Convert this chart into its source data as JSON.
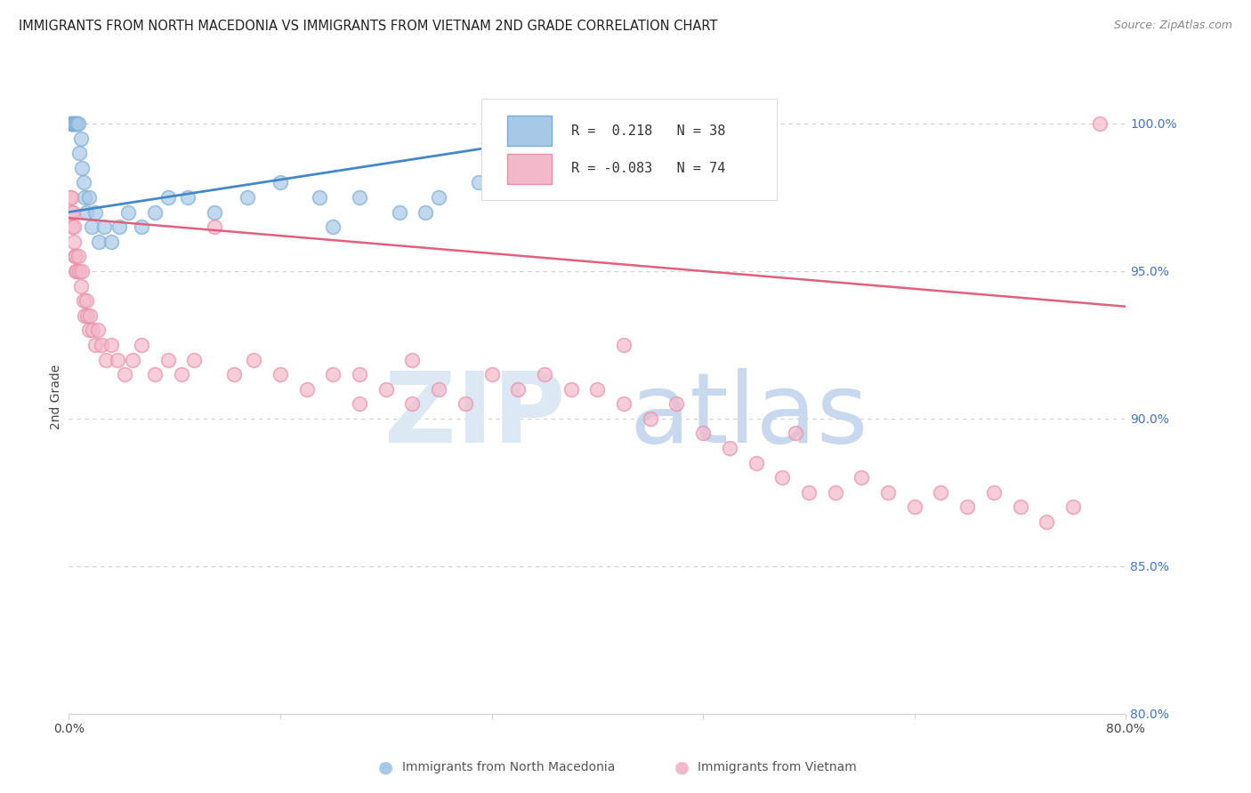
{
  "title": "IMMIGRANTS FROM NORTH MACEDONIA VS IMMIGRANTS FROM VIETNAM 2ND GRADE CORRELATION CHART",
  "source": "Source: ZipAtlas.com",
  "ylabel": "2nd Grade",
  "xlim": [
    0.0,
    80.0
  ],
  "ylim": [
    80.0,
    101.5
  ],
  "yticks": [
    80.0,
    85.0,
    90.0,
    95.0,
    100.0
  ],
  "ytick_labels": [
    "80.0%",
    "85.0%",
    "90.0%",
    "95.0%",
    "100.0%"
  ],
  "xtick_left_label": "0.0%",
  "xtick_right_label": "80.0%",
  "legend_r_blue": "0.218",
  "legend_n_blue": "38",
  "legend_r_pink": "-0.083",
  "legend_n_pink": "74",
  "blue_face_color": "#a8c8e8",
  "blue_edge_color": "#7aaed4",
  "pink_face_color": "#f4b8cb",
  "pink_edge_color": "#e890a8",
  "blue_line_color": "#4488cc",
  "pink_line_color": "#e06080",
  "grid_color": "#d0d0d0",
  "title_color": "#222222",
  "source_color": "#888888",
  "right_tick_color": "#4472c4",
  "watermark_zip_color": "#dde8f5",
  "watermark_atlas_color": "#c8d8ee",
  "legend_text_blue_r": "R =  0.218",
  "legend_text_blue_n": "N = 38",
  "legend_text_pink_r": "R = -0.083",
  "legend_text_pink_n": "N = 74",
  "bottom_legend_blue": "Immigrants from North Macedonia",
  "bottom_legend_pink": "Immigrants from Vietnam",
  "blue_x": [
    0.15,
    0.2,
    0.25,
    0.3,
    0.35,
    0.4,
    0.5,
    0.55,
    0.6,
    0.7,
    0.8,
    0.9,
    1.0,
    1.1,
    1.2,
    1.3,
    1.5,
    1.7,
    2.0,
    2.3,
    2.7,
    3.2,
    3.8,
    4.5,
    5.5,
    6.5,
    7.5,
    9.0,
    11.0,
    13.5,
    16.0,
    19.0,
    22.0,
    25.0,
    28.0,
    31.0,
    27.0,
    20.0
  ],
  "blue_y": [
    100.0,
    100.0,
    100.0,
    100.0,
    100.0,
    100.0,
    100.0,
    100.0,
    100.0,
    100.0,
    99.0,
    99.5,
    98.5,
    98.0,
    97.5,
    97.0,
    97.5,
    96.5,
    97.0,
    96.0,
    96.5,
    96.0,
    96.5,
    97.0,
    96.5,
    97.0,
    97.5,
    97.5,
    97.0,
    97.5,
    98.0,
    97.5,
    97.5,
    97.0,
    97.5,
    98.0,
    97.0,
    96.5
  ],
  "pink_x": [
    0.1,
    0.15,
    0.2,
    0.25,
    0.3,
    0.35,
    0.4,
    0.45,
    0.5,
    0.55,
    0.6,
    0.7,
    0.8,
    0.9,
    1.0,
    1.1,
    1.2,
    1.3,
    1.4,
    1.5,
    1.6,
    1.8,
    2.0,
    2.2,
    2.5,
    2.8,
    3.2,
    3.7,
    4.2,
    4.8,
    5.5,
    6.5,
    7.5,
    8.5,
    9.5,
    11.0,
    12.5,
    14.0,
    16.0,
    18.0,
    20.0,
    22.0,
    24.0,
    26.0,
    28.0,
    30.0,
    32.0,
    34.0,
    36.0,
    38.0,
    40.0,
    42.0,
    44.0,
    46.0,
    48.0,
    50.0,
    52.0,
    54.0,
    56.0,
    58.0,
    60.0,
    62.0,
    64.0,
    66.0,
    68.0,
    70.0,
    72.0,
    74.0,
    76.0,
    78.0,
    22.0,
    26.0,
    42.0,
    55.0
  ],
  "pink_y": [
    97.5,
    97.0,
    97.5,
    96.5,
    97.0,
    96.5,
    96.0,
    95.5,
    95.0,
    95.5,
    95.0,
    95.5,
    95.0,
    94.5,
    95.0,
    94.0,
    93.5,
    94.0,
    93.5,
    93.0,
    93.5,
    93.0,
    92.5,
    93.0,
    92.5,
    92.0,
    92.5,
    92.0,
    91.5,
    92.0,
    92.5,
    91.5,
    92.0,
    91.5,
    92.0,
    96.5,
    91.5,
    92.0,
    91.5,
    91.0,
    91.5,
    90.5,
    91.0,
    90.5,
    91.0,
    90.5,
    91.5,
    91.0,
    91.5,
    91.0,
    91.0,
    90.5,
    90.0,
    90.5,
    89.5,
    89.0,
    88.5,
    88.0,
    87.5,
    87.5,
    88.0,
    87.5,
    87.0,
    87.5,
    87.0,
    87.5,
    87.0,
    86.5,
    87.0,
    100.0,
    91.5,
    92.0,
    92.5,
    89.5
  ]
}
